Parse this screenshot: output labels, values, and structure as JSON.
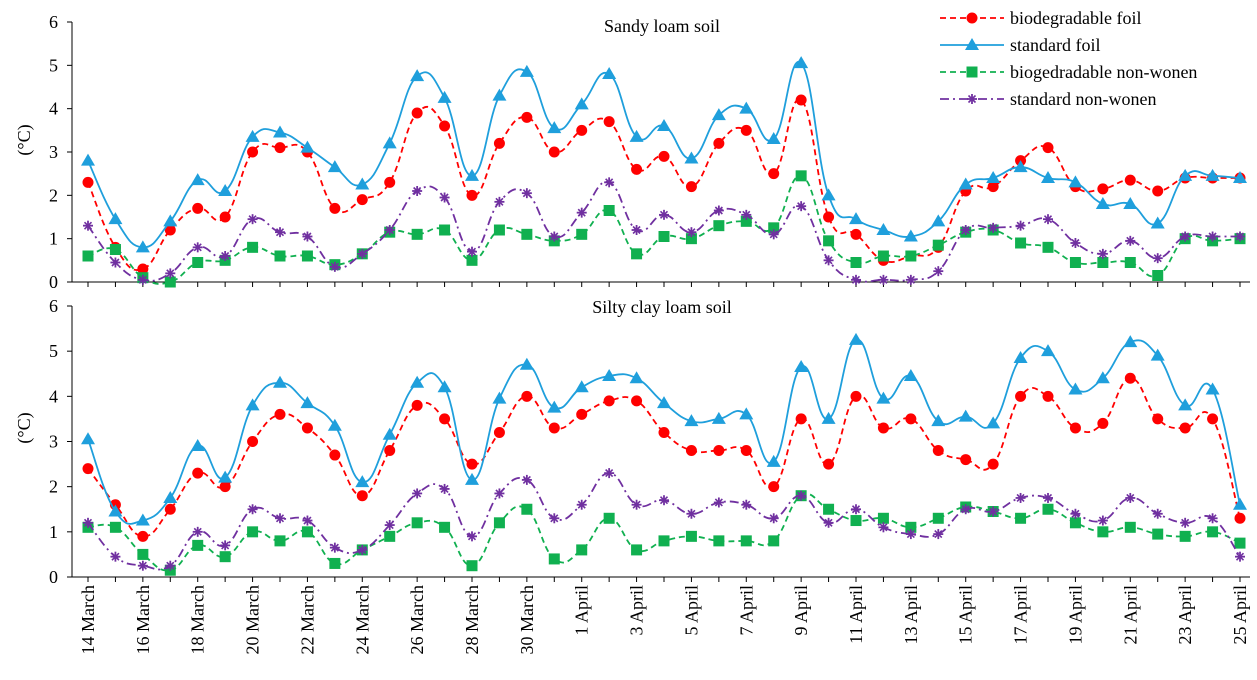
{
  "chart_data": [
    {
      "type": "line",
      "title": "Sandy loam soil",
      "ylabel": "(°C)",
      "xlabel": "",
      "ylim": [
        0,
        6
      ],
      "yticks": [
        0,
        1,
        2,
        3,
        4,
        5,
        6
      ],
      "grid": false,
      "legend_position": "top-right",
      "series": [
        {
          "name": "biodegradable foil",
          "color": "#ff0000",
          "marker": "circle",
          "dash": "dashed",
          "values": [
            2.3,
            0.8,
            0.3,
            1.2,
            1.7,
            1.5,
            3.0,
            3.1,
            3.0,
            1.7,
            1.9,
            2.3,
            3.9,
            3.6,
            2.0,
            3.2,
            3.8,
            3.0,
            3.5,
            3.7,
            2.6,
            2.9,
            2.2,
            3.2,
            3.5,
            2.5,
            4.2,
            1.5,
            1.1,
            0.5,
            0.6,
            0.8,
            2.1,
            2.2,
            2.8,
            3.1,
            2.2,
            2.15,
            2.35,
            2.1,
            2.4,
            2.4,
            2.4
          ]
        },
        {
          "name": "standard foil",
          "color": "#1f9fdc",
          "marker": "triangle",
          "dash": "solid",
          "values": [
            2.8,
            1.45,
            0.8,
            1.4,
            2.35,
            2.1,
            3.35,
            3.45,
            3.1,
            2.65,
            2.25,
            3.2,
            4.75,
            4.25,
            2.45,
            4.3,
            4.85,
            3.55,
            4.1,
            4.8,
            3.35,
            3.6,
            2.85,
            3.85,
            4.0,
            3.3,
            5.05,
            2.0,
            1.45,
            1.2,
            1.05,
            1.4,
            2.25,
            2.4,
            2.65,
            2.4,
            2.3,
            1.8,
            1.8,
            1.35,
            2.45,
            2.45,
            2.4
          ]
        },
        {
          "name": "biogedradable non-wonen",
          "color": "#10b050",
          "marker": "square",
          "dash": "dashed",
          "values": [
            0.6,
            0.75,
            0.1,
            0.0,
            0.45,
            0.5,
            0.8,
            0.6,
            0.6,
            0.4,
            0.65,
            1.15,
            1.1,
            1.2,
            0.5,
            1.2,
            1.1,
            0.95,
            1.1,
            1.65,
            0.65,
            1.05,
            1.0,
            1.3,
            1.4,
            1.25,
            2.45,
            0.95,
            0.45,
            0.6,
            0.6,
            0.85,
            1.15,
            1.2,
            0.9,
            0.8,
            0.45,
            0.45,
            0.45,
            0.15,
            1.0,
            0.95,
            1.0
          ]
        },
        {
          "name": "standard non-wonen",
          "color": "#7030a0",
          "marker": "star",
          "dash": "dashdot",
          "values": [
            1.3,
            0.45,
            0.05,
            0.2,
            0.8,
            0.6,
            1.45,
            1.15,
            1.05,
            0.35,
            0.65,
            1.2,
            2.1,
            1.95,
            0.7,
            1.85,
            2.05,
            1.05,
            1.6,
            2.3,
            1.2,
            1.55,
            1.15,
            1.65,
            1.55,
            1.1,
            1.75,
            0.5,
            0.05,
            0.05,
            0.05,
            0.25,
            1.2,
            1.25,
            1.3,
            1.45,
            0.9,
            0.65,
            0.95,
            0.55,
            1.05,
            1.05,
            1.05
          ]
        }
      ]
    },
    {
      "type": "line",
      "title": "Silty clay loam soil",
      "ylabel": "(°C)",
      "xlabel": "",
      "ylim": [
        0,
        6
      ],
      "yticks": [
        0,
        1,
        2,
        3,
        4,
        5,
        6
      ],
      "grid": false,
      "categories": [
        "14 March",
        "15 March",
        "16 March",
        "17 March",
        "18 March",
        "19 March",
        "20 March",
        "21 March",
        "22 March",
        "23 March",
        "24 March",
        "25 March",
        "26 March",
        "27 March",
        "28 March",
        "29 March",
        "30 March",
        "31 March",
        "1 April",
        "2 April",
        "3 April",
        "4 April",
        "5 April",
        "6 April",
        "7 April",
        "8 April",
        "9 April",
        "10 April",
        "11 April",
        "12 April",
        "13 April",
        "14 April",
        "15 April",
        "16 April",
        "17 April",
        "18 April",
        "19 April",
        "20 April",
        "21 April",
        "22 April",
        "23 April",
        "24 April",
        "25 April"
      ],
      "visible_tick_labels": [
        "14 March",
        "16 March",
        "18 March",
        "20 March",
        "22 March",
        "24 March",
        "26 March",
        "28 March",
        "30 March",
        "1 April",
        "3 April",
        "5 April",
        "7 April",
        "9 April",
        "11 April",
        "13 April",
        "15 April",
        "17 April",
        "19 April",
        "21 April",
        "23 April",
        "25 April"
      ],
      "series": [
        {
          "name": "biodegradable foil",
          "color": "#ff0000",
          "marker": "circle",
          "dash": "dashed",
          "values": [
            2.4,
            1.6,
            0.9,
            1.5,
            2.3,
            2.0,
            3.0,
            3.6,
            3.3,
            2.7,
            1.8,
            2.8,
            3.8,
            3.5,
            2.5,
            3.2,
            4.0,
            3.3,
            3.6,
            3.9,
            3.9,
            3.2,
            2.8,
            2.8,
            2.8,
            2.0,
            3.5,
            2.5,
            4.0,
            3.3,
            3.5,
            2.8,
            2.6,
            2.5,
            4.0,
            4.0,
            3.3,
            3.4,
            4.4,
            3.5,
            3.3,
            3.5,
            1.3
          ]
        },
        {
          "name": "standard foil",
          "color": "#1f9fdc",
          "marker": "triangle",
          "dash": "solid",
          "values": [
            3.05,
            1.45,
            1.25,
            1.75,
            2.9,
            2.2,
            3.8,
            4.3,
            3.85,
            3.35,
            2.1,
            3.15,
            4.3,
            4.2,
            2.15,
            3.95,
            4.7,
            3.75,
            4.2,
            4.45,
            4.4,
            3.85,
            3.45,
            3.5,
            3.6,
            2.55,
            4.65,
            3.5,
            5.25,
            3.95,
            4.45,
            3.45,
            3.55,
            3.4,
            4.85,
            5.0,
            4.15,
            4.4,
            5.2,
            4.9,
            3.8,
            4.15,
            1.6
          ]
        },
        {
          "name": "biogedradable non-wonen",
          "color": "#10b050",
          "marker": "square",
          "dash": "dashed",
          "values": [
            1.1,
            1.1,
            0.5,
            0.15,
            0.7,
            0.45,
            1.0,
            0.8,
            1.0,
            0.3,
            0.6,
            0.9,
            1.2,
            1.1,
            0.25,
            1.2,
            1.5,
            0.4,
            0.6,
            1.3,
            0.6,
            0.8,
            0.9,
            0.8,
            0.8,
            0.8,
            1.8,
            1.5,
            1.25,
            1.3,
            1.1,
            1.3,
            1.55,
            1.45,
            1.3,
            1.5,
            1.2,
            1.0,
            1.1,
            0.95,
            0.9,
            1.0,
            0.75
          ]
        },
        {
          "name": "standard non-wonen",
          "color": "#7030a0",
          "marker": "star",
          "dash": "dashdot",
          "values": [
            1.2,
            0.45,
            0.25,
            0.25,
            1.0,
            0.7,
            1.5,
            1.3,
            1.25,
            0.65,
            0.6,
            1.15,
            1.85,
            1.95,
            0.9,
            1.85,
            2.15,
            1.3,
            1.6,
            2.3,
            1.6,
            1.7,
            1.4,
            1.65,
            1.6,
            1.3,
            1.8,
            1.2,
            1.5,
            1.1,
            0.95,
            0.95,
            1.5,
            1.45,
            1.75,
            1.75,
            1.4,
            1.25,
            1.75,
            1.4,
            1.2,
            1.3,
            0.45
          ]
        }
      ]
    }
  ]
}
